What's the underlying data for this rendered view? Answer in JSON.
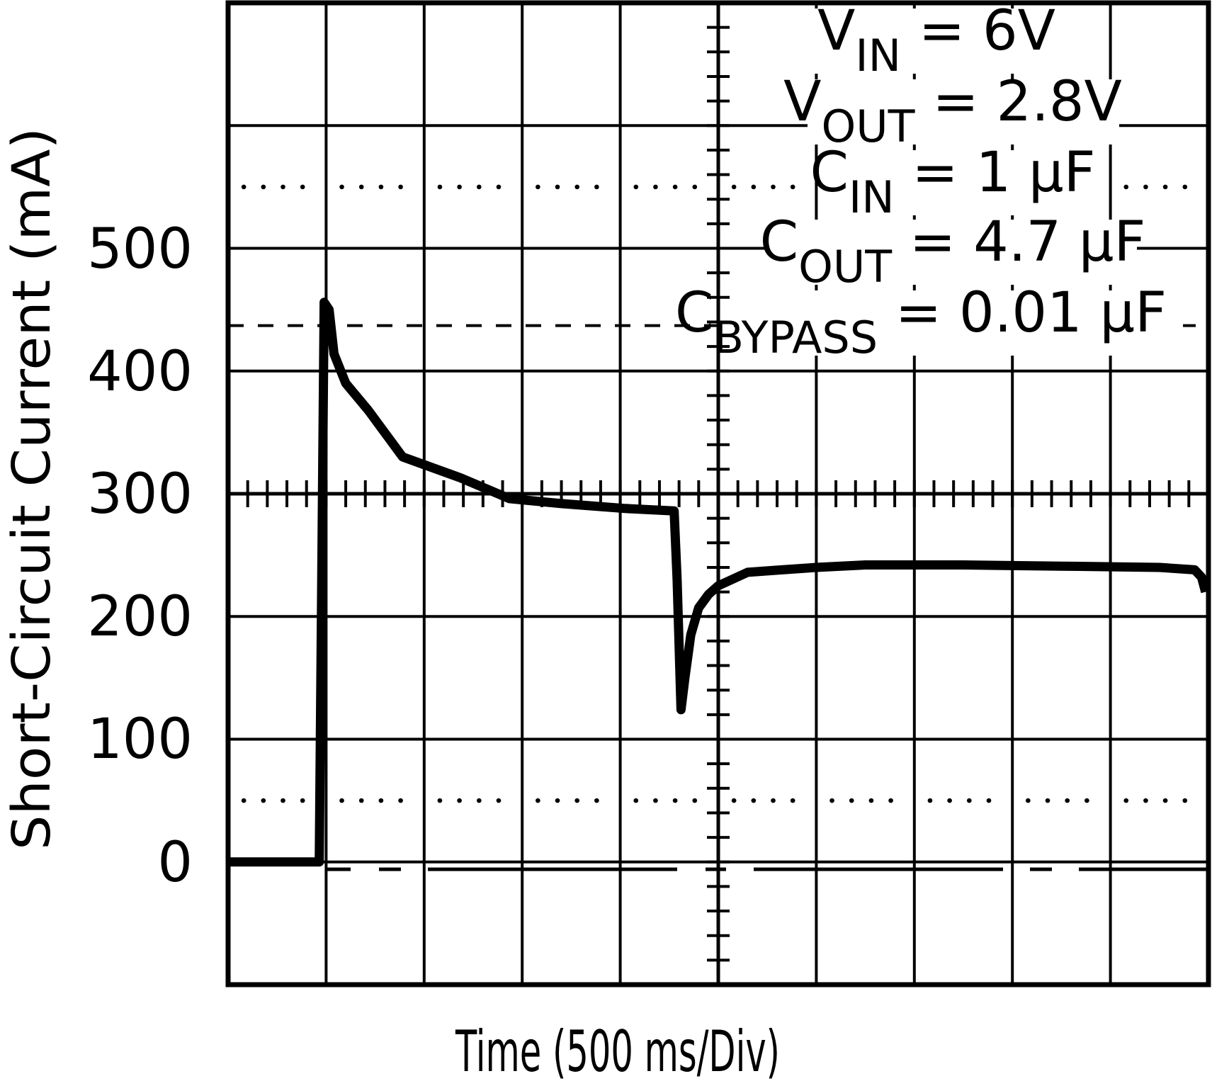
{
  "chart_data": {
    "type": "line",
    "title": "",
    "xlabel": "Time (500 ms/Div)",
    "ylabel": "Short-Circuit Current (mA)",
    "x_unit": "divisions (500 ms/div)",
    "xlim": [
      0,
      10
    ],
    "ylim": [
      -100,
      700
    ],
    "grid": true,
    "x_divisions": 10,
    "y_divisions": 8,
    "y_ticks": [
      0,
      100,
      200,
      300,
      400,
      500
    ],
    "y_tick_labels": [
      "0",
      "100",
      "200",
      "300",
      "400",
      "500"
    ],
    "center_axis_y": 300,
    "center_axis_x": 5,
    "reference_lines": [
      {
        "style": "dotted",
        "y": 550
      },
      {
        "style": "dashed",
        "y": 437
      },
      {
        "style": "dotted",
        "y": 50
      },
      {
        "style": "long-dash",
        "y": -6
      }
    ],
    "annotations": [
      {
        "main": "V",
        "sub": "IN",
        "rest": " = 6V"
      },
      {
        "main": "V",
        "sub": "OUT",
        "rest": " = 2.8V"
      },
      {
        "main": "C",
        "sub": "IN",
        "rest": " = 1 μF"
      },
      {
        "main": "C",
        "sub": "OUT",
        "rest": " = 4.7 μF"
      },
      {
        "main": "C",
        "sub": "BYPASS",
        "rest": " = 0.01 μF"
      }
    ],
    "series": [
      {
        "name": "Short-Circuit Current",
        "color": "#000000",
        "x": [
          0,
          0.93,
          0.98,
          1.03,
          1.08,
          1.2,
          1.43,
          1.78,
          2.37,
          2.87,
          3.4,
          4.05,
          4.55,
          4.58,
          4.62,
          4.66,
          4.72,
          4.8,
          4.9,
          5.0,
          5.3,
          5.65,
          6.0,
          6.5,
          7.5,
          8.5,
          9.5,
          9.86,
          9.93,
          9.97
        ],
        "y": [
          0,
          0,
          456,
          450,
          414,
          390,
          368,
          330,
          313,
          296,
          292,
          288,
          286,
          230,
          124,
          150,
          185,
          207,
          218,
          225,
          236,
          238,
          240,
          242,
          242,
          241,
          240,
          238,
          232,
          220
        ]
      }
    ]
  },
  "axes": {
    "xlabel": "Time (500 ms/Div)",
    "ylabel": "Short-Circuit Current (mA)",
    "y_tick_labels": [
      "500",
      "400",
      "300",
      "200",
      "100",
      "0"
    ]
  },
  "legend": {
    "rows": [
      {
        "main": "V",
        "sub": "IN",
        "rest": " = 6V"
      },
      {
        "main": "V",
        "sub": "OUT",
        "rest": " = 2.8V"
      },
      {
        "main": "C",
        "sub": "IN",
        "rest": " = 1 μF"
      },
      {
        "main": "C",
        "sub": "OUT",
        "rest": " = 4.7 μF"
      },
      {
        "main": "C",
        "sub": "BYPASS",
        "rest": " = 0.01 μF"
      }
    ]
  }
}
